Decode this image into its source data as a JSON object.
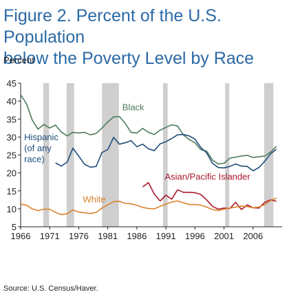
{
  "title_line1": "Figure 2. Percent of the U.S. Population",
  "title_line2": "below the Poverty Level by Race",
  "source": "Source: U.S. Census/Haver.",
  "colors": {
    "black": "#4e7a5c",
    "hispanic": "#1f4d7a",
    "asian": "#a8192b",
    "white": "#d9822b",
    "recession": "#cfcfcf",
    "title": "#2b6aa6"
  },
  "chart_data": {
    "type": "line",
    "title": "Figure 2. Percent of the U.S. Population below the Poverty Level by Race",
    "ylabel": "Percent",
    "xlabel": "",
    "xlim": [
      1966,
      2011
    ],
    "ylim": [
      5,
      45
    ],
    "yticks": [
      5,
      10,
      15,
      20,
      25,
      30,
      35,
      40,
      45
    ],
    "xticks": [
      1966,
      1971,
      1976,
      1981,
      1986,
      1991,
      1996,
      2001,
      2006
    ],
    "grid": false,
    "legend": "inline labels",
    "recessions": [
      [
        1969.9,
        1970.9
      ],
      [
        1973.9,
        1975.2
      ],
      [
        1980.0,
        1982.9
      ],
      [
        1990.5,
        1991.3
      ],
      [
        2001.2,
        2001.9
      ],
      [
        2007.9,
        2009.5
      ]
    ],
    "series": [
      {
        "name": "Black",
        "label_lines": [
          "Black"
        ],
        "x": [
          1966,
          1967,
          1968,
          1969,
          1970,
          1971,
          1972,
          1973,
          1974,
          1975,
          1976,
          1977,
          1978,
          1979,
          1980,
          1981,
          1982,
          1983,
          1984,
          1985,
          1986,
          1987,
          1988,
          1989,
          1990,
          1991,
          1992,
          1993,
          1994,
          1995,
          1996,
          1997,
          1998,
          1999,
          2000,
          2001,
          2002,
          2003,
          2004,
          2005,
          2006,
          2007,
          2008,
          2009,
          2010
        ],
        "values": [
          41.8,
          39.3,
          34.7,
          32.2,
          33.5,
          32.5,
          33.3,
          31.4,
          30.3,
          31.3,
          31.1,
          31.3,
          30.6,
          31.0,
          32.5,
          34.2,
          35.6,
          35.7,
          33.8,
          31.3,
          31.1,
          32.4,
          31.3,
          30.7,
          31.9,
          32.7,
          33.4,
          33.1,
          30.6,
          29.3,
          28.4,
          26.5,
          26.1,
          23.6,
          22.5,
          22.7,
          24.1,
          24.4,
          24.7,
          24.9,
          24.3,
          24.5,
          24.7,
          25.8,
          27.4
        ]
      },
      {
        "name": "Hispanic (of any race)",
        "label_lines": [
          "Hispanic",
          "(of any",
          "race)"
        ],
        "x": [
          1972,
          1973,
          1974,
          1975,
          1976,
          1977,
          1978,
          1979,
          1980,
          1981,
          1982,
          1983,
          1984,
          1985,
          1986,
          1987,
          1988,
          1989,
          1990,
          1991,
          1992,
          1993,
          1994,
          1995,
          1996,
          1997,
          1998,
          1999,
          2000,
          2001,
          2002,
          2003,
          2004,
          2005,
          2006,
          2007,
          2008,
          2009,
          2010
        ],
        "values": [
          22.8,
          21.9,
          23.0,
          26.9,
          24.7,
          22.4,
          21.6,
          21.8,
          25.7,
          26.5,
          29.9,
          28.0,
          28.4,
          29.0,
          27.3,
          28.0,
          26.7,
          26.2,
          28.1,
          28.7,
          29.6,
          30.6,
          30.7,
          30.3,
          29.4,
          27.1,
          25.6,
          22.7,
          21.5,
          21.4,
          21.8,
          22.5,
          21.9,
          21.8,
          20.6,
          21.5,
          23.2,
          25.3,
          26.6
        ]
      },
      {
        "name": "Asian/Pacific Islander",
        "label_lines": [
          "Asian/Pacific Islander"
        ],
        "x": [
          1987,
          1988,
          1989,
          1990,
          1991,
          1992,
          1993,
          1994,
          1995,
          1996,
          1997,
          1998,
          1999,
          2000,
          2001,
          2002,
          2003,
          2004,
          2005,
          2006,
          2007,
          2008,
          2009,
          2010
        ],
        "values": [
          16.1,
          17.3,
          14.1,
          12.2,
          13.8,
          12.7,
          15.3,
          14.6,
          14.6,
          14.5,
          14.0,
          12.5,
          10.7,
          9.9,
          10.2,
          10.1,
          11.8,
          9.8,
          11.1,
          10.3,
          10.2,
          11.8,
          12.5,
          12.1
        ]
      },
      {
        "name": "White",
        "label_lines": [
          "White"
        ],
        "x": [
          1966,
          1967,
          1968,
          1969,
          1970,
          1971,
          1972,
          1973,
          1974,
          1975,
          1976,
          1977,
          1978,
          1979,
          1980,
          1981,
          1982,
          1983,
          1984,
          1985,
          1986,
          1987,
          1988,
          1989,
          1990,
          1991,
          1992,
          1993,
          1994,
          1995,
          1996,
          1997,
          1998,
          1999,
          2000,
          2001,
          2002,
          2003,
          2004,
          2005,
          2006,
          2007,
          2008,
          2009,
          2010
        ],
        "values": [
          11.3,
          11.0,
          10.0,
          9.5,
          9.9,
          9.9,
          9.0,
          8.4,
          8.6,
          9.7,
          9.1,
          8.9,
          8.7,
          9.0,
          10.2,
          11.1,
          12.0,
          12.1,
          11.5,
          11.4,
          11.0,
          10.4,
          10.1,
          10.0,
          10.7,
          11.3,
          11.9,
          12.2,
          11.7,
          11.2,
          11.2,
          11.0,
          10.5,
          9.8,
          9.5,
          9.9,
          10.2,
          10.5,
          10.8,
          10.6,
          10.3,
          10.5,
          11.2,
          12.3,
          13.0
        ]
      }
    ]
  }
}
